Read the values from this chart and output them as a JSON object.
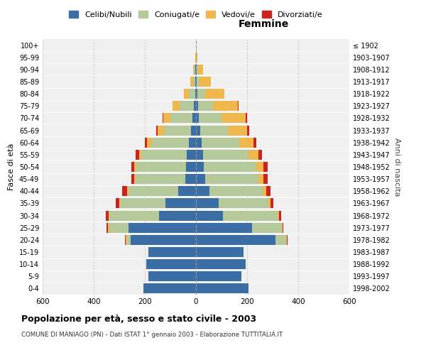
{
  "age_groups": [
    "0-4",
    "5-9",
    "10-14",
    "15-19",
    "20-24",
    "25-29",
    "30-34",
    "35-39",
    "40-44",
    "45-49",
    "50-54",
    "55-59",
    "60-64",
    "65-69",
    "70-74",
    "75-79",
    "80-84",
    "85-89",
    "90-94",
    "95-99",
    "100+"
  ],
  "birth_years": [
    "1998-2002",
    "1993-1997",
    "1988-1992",
    "1983-1987",
    "1978-1982",
    "1973-1977",
    "1968-1972",
    "1963-1967",
    "1958-1962",
    "1953-1957",
    "1948-1952",
    "1943-1947",
    "1938-1942",
    "1933-1937",
    "1928-1932",
    "1923-1927",
    "1918-1922",
    "1913-1917",
    "1908-1912",
    "1903-1907",
    "≤ 1902"
  ],
  "males_celibi": [
    205,
    185,
    195,
    185,
    255,
    265,
    145,
    120,
    70,
    42,
    38,
    35,
    28,
    20,
    15,
    8,
    4,
    2,
    2,
    0,
    0
  ],
  "males_coniugati": [
    0,
    0,
    0,
    0,
    18,
    75,
    195,
    178,
    195,
    195,
    195,
    178,
    148,
    105,
    85,
    55,
    25,
    8,
    5,
    0,
    0
  ],
  "males_vedovi": [
    0,
    0,
    0,
    0,
    3,
    5,
    2,
    3,
    5,
    5,
    8,
    10,
    15,
    25,
    28,
    28,
    18,
    12,
    5,
    2,
    0
  ],
  "males_divorziati": [
    0,
    0,
    0,
    0,
    3,
    4,
    10,
    12,
    18,
    12,
    12,
    12,
    8,
    5,
    2,
    0,
    0,
    0,
    0,
    0,
    0
  ],
  "females_celibi": [
    205,
    178,
    195,
    185,
    310,
    220,
    105,
    88,
    52,
    35,
    30,
    28,
    22,
    18,
    12,
    8,
    5,
    3,
    2,
    0,
    0
  ],
  "females_coniugati": [
    0,
    0,
    0,
    0,
    42,
    115,
    215,
    195,
    210,
    210,
    205,
    178,
    148,
    108,
    88,
    58,
    30,
    10,
    5,
    0,
    0
  ],
  "females_vedovi": [
    0,
    0,
    0,
    0,
    3,
    4,
    5,
    8,
    12,
    18,
    28,
    38,
    55,
    75,
    95,
    98,
    75,
    45,
    22,
    5,
    0
  ],
  "females_divorziati": [
    0,
    0,
    0,
    0,
    3,
    3,
    8,
    12,
    18,
    18,
    18,
    15,
    10,
    8,
    5,
    3,
    0,
    0,
    0,
    0,
    0
  ],
  "color_celibi": "#3a6ea5",
  "color_coniugati": "#b5c99a",
  "color_vedovi": "#f0b84c",
  "color_divorziati": "#cc2222",
  "color_bg": "#f0f0f0",
  "color_grid": "#cccccc",
  "title": "Popolazione per età, sesso e stato civile - 2003",
  "subtitle": "COMUNE DI MANIAGO (PN) - Dati ISTAT 1° gennaio 2003 - Elaborazione TUTTITALIA.IT",
  "ylabel_left": "Fasce di età",
  "ylabel_right": "Anni di nascita",
  "xlabel_femmine": "Femmine",
  "xlim": 600,
  "legend_labels": [
    "Celibi/Nubili",
    "Coniugati/e",
    "Vedovi/e",
    "Divorziati/e"
  ]
}
